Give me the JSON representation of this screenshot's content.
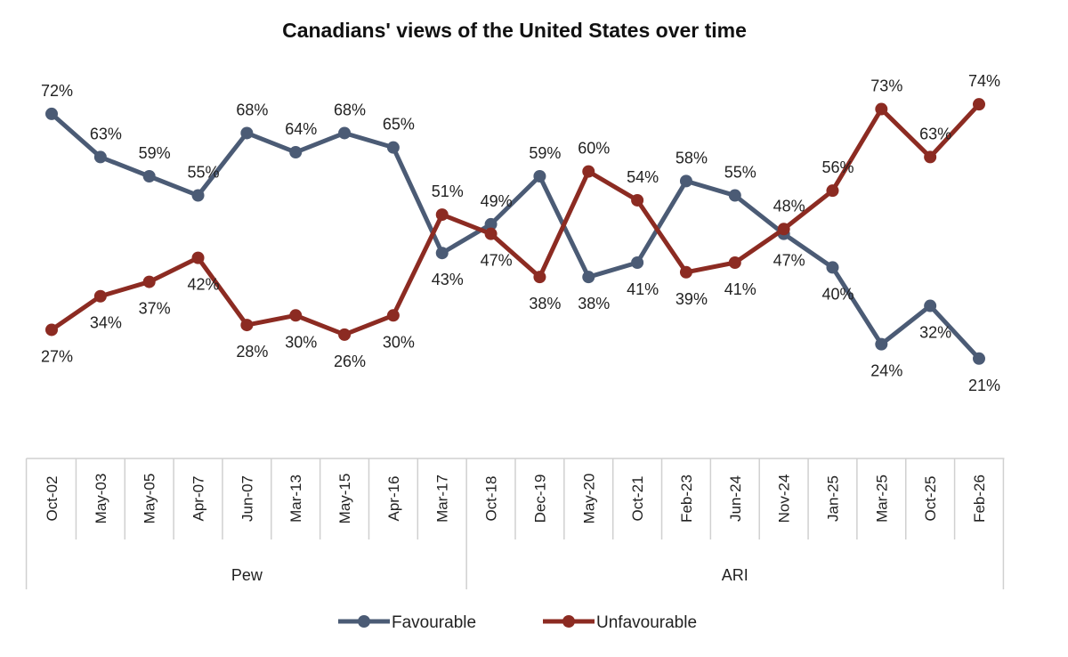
{
  "chart_data": {
    "type": "line",
    "title": "Canadians' views of the United States over time",
    "categories": [
      "Oct-02",
      "May-03",
      "May-05",
      "Apr-07",
      "Jun-07",
      "Mar-13",
      "May-15",
      "Apr-16",
      "Mar-17",
      "Oct-18",
      "Dec-19",
      "May-20",
      "Oct-21",
      "Feb-23",
      "Jun-24",
      "Nov-24",
      "Jan-25",
      "Mar-25",
      "Oct-25",
      "Feb-26"
    ],
    "groups": [
      {
        "label": "Pew",
        "count": 9
      },
      {
        "label": "ARI",
        "count": 11
      }
    ],
    "series": [
      {
        "name": "Favourable",
        "color": "#4b5b75",
        "values": [
          72,
          63,
          59,
          55,
          68,
          64,
          68,
          65,
          43,
          49,
          59,
          38,
          41,
          58,
          55,
          47,
          40,
          24,
          32,
          21
        ]
      },
      {
        "name": "Unfavourable",
        "color": "#8c2b22",
        "values": [
          27,
          34,
          37,
          42,
          28,
          30,
          26,
          30,
          51,
          47,
          38,
          60,
          54,
          39,
          41,
          48,
          56,
          73,
          63,
          74
        ]
      }
    ],
    "value_suffix": "%",
    "ylim": [
      0,
      80
    ],
    "grid": false,
    "legend_position": "bottom"
  }
}
